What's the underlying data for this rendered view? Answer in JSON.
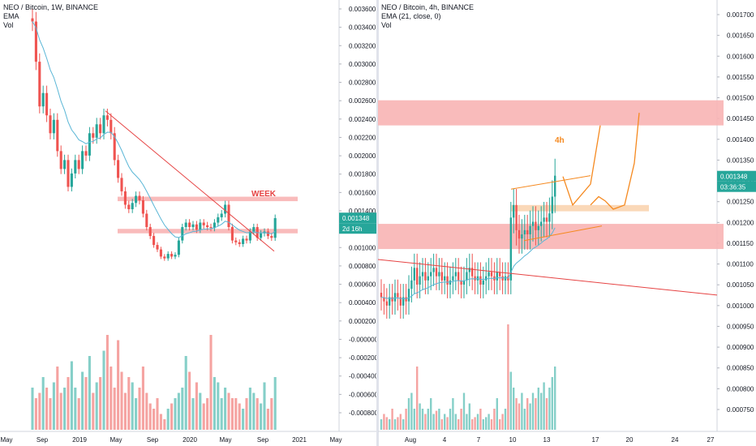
{
  "chart_data": [
    {
      "type": "candlestick",
      "panel": "left",
      "legend": {
        "symbol_line": "NEO / Bitcoin, 1W, BINANCE",
        "indicator": "EMA",
        "volume": "Vol"
      },
      "y_axis_ticks": [
        "0.003600",
        "0.003400",
        "0.003200",
        "0.003000",
        "0.002800",
        "0.002600",
        "0.002400",
        "0.002200",
        "0.002000",
        "0.001800",
        "0.001600",
        "0.001400",
        "0.001200",
        "0.001000",
        "0.000800",
        "0.000600",
        "0.000400",
        "0.000200",
        "-0.000000",
        "-0.000200",
        "-0.000400",
        "-0.000600",
        "-0.000800"
      ],
      "x_axis_ticks": [
        "May",
        "Sep",
        "2019",
        "May",
        "Sep",
        "2020",
        "May",
        "Sep",
        "2021",
        "May"
      ],
      "price_label": "0.001348",
      "countdown_label": "2d 16h",
      "annotation": "WEEK",
      "ylim": [
        -0.0009,
        0.0037
      ],
      "close_series": [
        0.00355,
        0.0031,
        0.0026,
        0.00275,
        0.0025,
        0.0023,
        0.00245,
        0.0021,
        0.0019,
        0.002,
        0.0017,
        0.00185,
        0.002,
        0.0019,
        0.0021,
        0.00205,
        0.0023,
        0.00225,
        0.0024,
        0.0023,
        0.0025,
        0.00245,
        0.0023,
        0.002,
        0.0018,
        0.00165,
        0.0015,
        0.00145,
        0.00152,
        0.0016,
        0.00155,
        0.0014,
        0.00125,
        0.00115,
        0.00105,
        0.001,
        0.00092,
        0.0009,
        0.00095,
        0.00092,
        0.00094,
        0.0011,
        0.00125,
        0.0013,
        0.00125,
        0.00128,
        0.00122,
        0.0013,
        0.00127,
        0.00125,
        0.00124,
        0.0013,
        0.00136,
        0.0014,
        0.0015,
        0.00125,
        0.0011,
        0.00108,
        0.00106,
        0.00112,
        0.0011,
        0.0012,
        0.00125,
        0.00113,
        0.00118,
        0.0012,
        0.00115,
        0.00113,
        0.00135
      ],
      "volume_series": [
        0.4,
        0.3,
        0.35,
        0.5,
        0.4,
        0.3,
        0.45,
        0.6,
        0.35,
        0.4,
        0.5,
        0.65,
        0.4,
        0.3,
        0.55,
        0.5,
        0.7,
        0.35,
        0.45,
        0.5,
        0.75,
        0.9,
        0.6,
        0.4,
        0.85,
        0.55,
        0.35,
        0.5,
        0.45,
        0.3,
        0.4,
        0.6,
        0.35,
        0.25,
        0.2,
        0.3,
        0.15,
        0.1,
        0.2,
        0.25,
        0.3,
        0.35,
        0.4,
        0.7,
        0.55,
        0.3,
        0.45,
        0.35,
        0.25,
        0.3,
        0.9,
        0.5,
        0.45,
        0.3,
        0.4,
        0.35,
        0.3,
        0.3,
        0.25,
        0.2,
        0.3,
        0.4,
        0.35,
        0.3,
        0.25,
        0.45,
        0.2,
        0.3,
        0.5
      ]
    },
    {
      "type": "candlestick",
      "panel": "right",
      "legend": {
        "symbol_line": "NEO / Bitcoin, 4h, BINANCE",
        "indicator": "EMA (21, close, 0)",
        "volume": "Vol"
      },
      "y_axis_ticks": [
        "0.001700",
        "0.001650",
        "0.001600",
        "0.001550",
        "0.001500",
        "0.001450",
        "0.001400",
        "0.001350",
        "0.001300",
        "0.001250",
        "0.001200",
        "0.001150",
        "0.001100",
        "0.001050",
        "0.001000",
        "0.000950",
        "0.000900",
        "0.000850",
        "0.000800",
        "0.000750"
      ],
      "x_axis_ticks": [
        "Aug",
        "4",
        "7",
        "10",
        "13",
        "17",
        "20",
        "24",
        "27"
      ],
      "price_label": "0.001348",
      "countdown_label": "03:36:35",
      "annotation": "4h",
      "ylim": [
        0.00073,
        0.00175
      ],
      "close_series": [
        0.00106,
        0.00105,
        0.00104,
        0.00106,
        0.00105,
        0.00107,
        0.00106,
        0.00104,
        0.00106,
        0.00105,
        0.00108,
        0.0011,
        0.00113,
        0.00109,
        0.00111,
        0.00112,
        0.0011,
        0.00111,
        0.00112,
        0.00113,
        0.00111,
        0.00112,
        0.0011,
        0.00111,
        0.00109,
        0.0011,
        0.00111,
        0.00112,
        0.0011,
        0.00109,
        0.0011,
        0.00112,
        0.00113,
        0.00111,
        0.0011,
        0.00111,
        0.00109,
        0.0011,
        0.00111,
        0.00112,
        0.00111,
        0.0011,
        0.00112,
        0.00111,
        0.0011,
        0.00111,
        0.0011,
        0.00125,
        0.00128,
        0.00122,
        0.0012,
        0.00121,
        0.00122,
        0.00121,
        0.00123,
        0.00124,
        0.00122,
        0.00123,
        0.00124,
        0.00125,
        0.00124,
        0.00126,
        0.0013,
        0.00135
      ],
      "volume_series": [
        0.1,
        0.15,
        0.12,
        0.1,
        0.2,
        0.1,
        0.12,
        0.15,
        0.1,
        0.2,
        0.3,
        0.35,
        0.2,
        0.6,
        0.25,
        0.2,
        0.15,
        0.2,
        0.3,
        0.15,
        0.18,
        0.2,
        0.1,
        0.15,
        0.12,
        0.2,
        0.3,
        0.15,
        0.1,
        0.2,
        0.35,
        0.15,
        0.25,
        0.1,
        0.12,
        0.15,
        0.2,
        0.1,
        0.12,
        0.15,
        0.1,
        0.2,
        0.3,
        0.1,
        0.15,
        0.2,
        1.0,
        0.55,
        0.4,
        0.3,
        0.25,
        0.35,
        0.2,
        0.3,
        0.25,
        0.35,
        0.3,
        0.4,
        0.35,
        0.45,
        0.3,
        0.4,
        0.5,
        0.6
      ]
    }
  ],
  "colors": {
    "up": "#26a69a",
    "down": "#ef5350",
    "vol_up": "#85cfc8",
    "vol_down": "#f5a3a1",
    "ema": "#5ab6d6",
    "trend": "#e64343",
    "zone": "#f8b4b4",
    "zone_orange": "#f9d4b0",
    "projection": "#f5891f",
    "price_tag": "#26a69a"
  }
}
